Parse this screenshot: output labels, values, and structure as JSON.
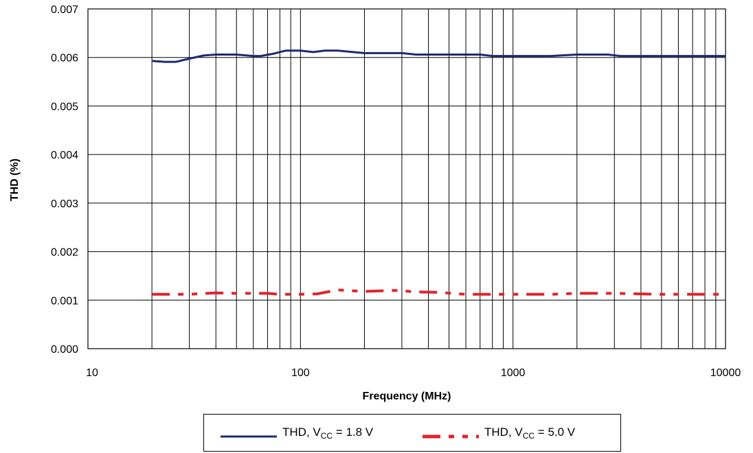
{
  "chart_data": {
    "type": "line",
    "xlabel": "Frequency (MHz)",
    "ylabel": "THD (%)",
    "x_scale": "log",
    "xlim": [
      10,
      10000
    ],
    "ylim": [
      0,
      0.007
    ],
    "x_ticks": [
      "10",
      "100",
      "1000",
      "10000"
    ],
    "y_ticks": [
      "0.000",
      "0.001",
      "0.002",
      "0.003",
      "0.004",
      "0.005",
      "0.006",
      "0.007"
    ],
    "grid": true,
    "legend_position": "bottom",
    "series": [
      {
        "name": "THD, VCC = 1.8 V",
        "name_main": "THD, V",
        "name_sub": "CC",
        "name_tail": " = 1.8 V",
        "color": "#1f2a6e",
        "style": "solid",
        "x": [
          20,
          23,
          26,
          29,
          35,
          40,
          50,
          60,
          65,
          75,
          85,
          100,
          115,
          130,
          150,
          200,
          250,
          300,
          350,
          500,
          650,
          700,
          800,
          1000,
          1300,
          1500,
          2000,
          2800,
          3200,
          5000,
          7000,
          10000
        ],
        "y": [
          0.00593,
          0.00591,
          0.00591,
          0.00596,
          0.00604,
          0.00606,
          0.00606,
          0.00603,
          0.00603,
          0.00608,
          0.00614,
          0.00614,
          0.00611,
          0.00614,
          0.00614,
          0.00609,
          0.00609,
          0.00609,
          0.00606,
          0.00606,
          0.00606,
          0.00606,
          0.00603,
          0.00603,
          0.00603,
          0.00603,
          0.00606,
          0.00606,
          0.00603,
          0.00603,
          0.00603,
          0.00603
        ]
      },
      {
        "name": "THD, VCC = 5.0 V",
        "name_main": "THD, V",
        "name_sub": "CC",
        "name_tail": " = 5.0 V",
        "color": "#e0242b",
        "style": "dashed",
        "x": [
          20,
          30,
          40,
          50,
          60,
          70,
          80,
          100,
          120,
          150,
          200,
          280,
          350,
          450,
          600,
          700,
          1000,
          1500,
          2000,
          3000,
          5000,
          10000
        ],
        "y": [
          0.00112,
          0.00112,
          0.00115,
          0.00114,
          0.00114,
          0.00114,
          0.00112,
          0.00112,
          0.00113,
          0.00121,
          0.00118,
          0.0012,
          0.00117,
          0.00116,
          0.00112,
          0.00112,
          0.00112,
          0.00112,
          0.00114,
          0.00114,
          0.00112,
          0.00112
        ]
      }
    ]
  }
}
